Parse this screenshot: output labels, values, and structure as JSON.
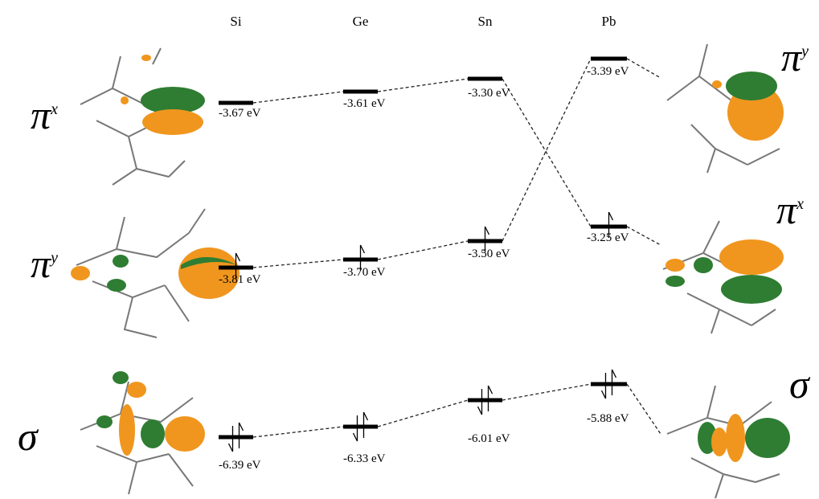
{
  "columns": [
    "Si",
    "Ge",
    "Sn",
    "Pb"
  ],
  "left_labels": [
    {
      "symbol": "π",
      "superscript": "x"
    },
    {
      "symbol": "π",
      "superscript": "y"
    },
    {
      "symbol": "σ"
    }
  ],
  "right_labels": [
    {
      "symbol": "π",
      "superscript": "y"
    },
    {
      "symbol": "π",
      "superscript": "x"
    },
    {
      "symbol": "σ"
    }
  ],
  "levels": [
    [
      "-3.67 eV",
      "-3.81 eV",
      "-6.39 eV"
    ],
    [
      "-3.61 eV",
      "-3.70 eV",
      "-6.33 eV"
    ],
    [
      "-3.30 eV",
      "-3.50 eV",
      "-6.01 eV"
    ],
    [
      "-3.25 eV",
      "-3.39 eV",
      "-5.88 eV"
    ]
  ]
}
